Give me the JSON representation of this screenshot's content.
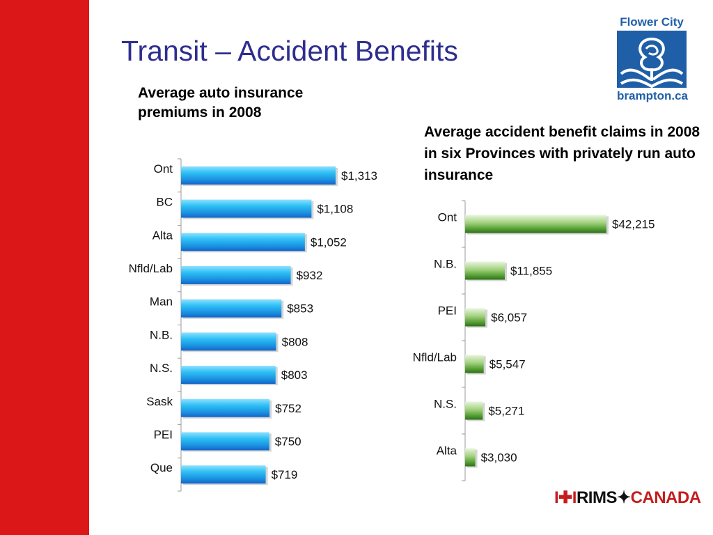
{
  "slide": {
    "title": "Transit – Accident Benefits",
    "subtitle_left": "Average auto insurance premiums in 2008",
    "subtitle_right": "Average accident benefit claims in 2008 in six Provinces with privately run auto insurance"
  },
  "logo": {
    "top_text": "Flower City",
    "bottom_text": "brampton.ca",
    "icon": "flower-city-rose-icon",
    "color": "#1f5fa8"
  },
  "footer_logo": {
    "flag_text": "I✚I",
    "text_left": "RIMS",
    "text_right": "CANADA",
    "icon": "canada-flag-icon"
  },
  "colors": {
    "accent_red": "#dc1717",
    "title_blue": "#2e2e8f",
    "bar_blue": "#1aa8e6",
    "bar_green": "#5aa83c"
  },
  "chart_data": [
    {
      "type": "bar",
      "orientation": "horizontal",
      "title": "Average auto insurance premiums in 2008",
      "categories": [
        "Ont",
        "BC",
        "Alta",
        "Nfld/Lab",
        "Man",
        "N.B.",
        "N.S.",
        "Sask",
        "PEI",
        "Que"
      ],
      "values": [
        1313,
        1108,
        1052,
        932,
        853,
        808,
        803,
        752,
        750,
        719
      ],
      "data_labels": [
        "$1,313",
        "$1,108",
        "$1,052",
        "$932",
        "$853",
        "$808",
        "$803",
        "$752",
        "$750",
        "$719"
      ],
      "grid": false,
      "legend": "none"
    },
    {
      "type": "bar",
      "orientation": "horizontal",
      "title": "Average accident benefit claims in 2008 in six Provinces with privately run auto insurance",
      "categories": [
        "Ont",
        "N.B.",
        "PEI",
        "Nfld/Lab",
        "N.S.",
        "Alta"
      ],
      "values": [
        42215,
        11855,
        6057,
        5547,
        5271,
        3030
      ],
      "data_labels": [
        "$42,215",
        "$11,855",
        "$6,057",
        "$5,547",
        "$5,271",
        "$3,030"
      ],
      "grid": false,
      "legend": "none"
    }
  ]
}
